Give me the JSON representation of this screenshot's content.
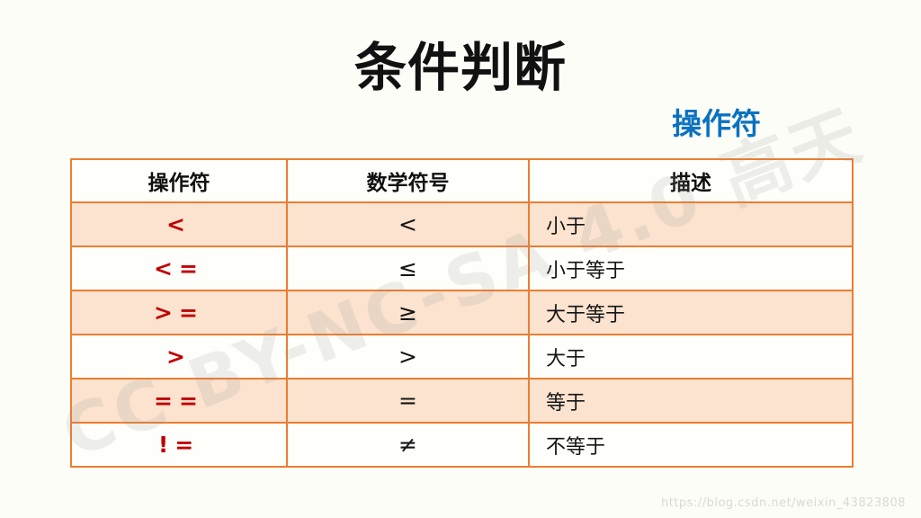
{
  "slide": {
    "title": "条件判断",
    "section_label": "操作符",
    "diagonal_watermark": "CC BY-NC-SA 4.0 高天",
    "url_watermark": "https://blog.csdn.net/weixin_43823808"
  },
  "table": {
    "headers": [
      "操作符",
      "数学符号",
      "描述"
    ],
    "rows": [
      {
        "operator": "<",
        "symbol": "<",
        "description": "小于"
      },
      {
        "operator": "<=",
        "symbol": "≤",
        "description": "小于等于"
      },
      {
        "operator": ">=",
        "symbol": "≥",
        "description": "大于等于"
      },
      {
        "operator": ">",
        "symbol": ">",
        "description": "大于"
      },
      {
        "operator": "==",
        "symbol": "=",
        "description": "等于"
      },
      {
        "operator": "!=",
        "symbol": "≠",
        "description": "不等于"
      }
    ]
  },
  "colors": {
    "border_orange": "#ED7D31",
    "row_peach": "#FBE3D0",
    "operator_red": "#C00000",
    "label_blue": "#0A72C0",
    "background": "#FDFDF8"
  }
}
